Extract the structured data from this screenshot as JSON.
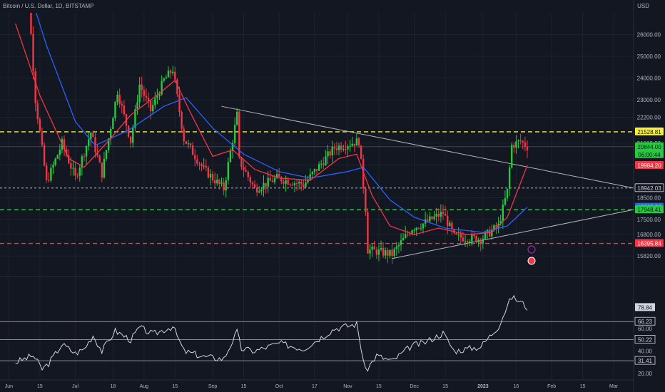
{
  "header": {
    "title": "Bitcoin / U.S. Dollar, 1D, BITSTAMP",
    "currency": "USD"
  },
  "colors": {
    "background": "#131722",
    "up": "#26c940",
    "down": "#f23645",
    "ma_fast": "#f23645",
    "ma_slow": "#2962ff",
    "rsi": "#d1d4dc",
    "trend": "#b2b5be",
    "resistance": "#f7f13b",
    "support_green": "#26c940",
    "support_red": "#f23645"
  },
  "chart_data": [
    {
      "type": "candlestick",
      "title": "Bitcoin / U.S. Dollar, 1D, BITSTAMP",
      "ylabel": "USD",
      "ylim": [
        15200,
        27000
      ],
      "y_ticks": [
        {
          "value": 15820,
          "label": "15820.00"
        },
        {
          "value": 16800,
          "label": "16800.00"
        },
        {
          "value": 17500,
          "label": "17500.00"
        },
        {
          "value": 18500,
          "label": "18500.00"
        },
        {
          "value": 20000,
          "label": "20000.00"
        },
        {
          "value": 21000,
          "label": "21000.00"
        },
        {
          "value": 22200,
          "label": "22200.00"
        },
        {
          "value": 23000,
          "label": "23000.00"
        },
        {
          "value": 24000,
          "label": "24000.00"
        },
        {
          "value": 25000,
          "label": "25000.00"
        },
        {
          "value": 26000,
          "label": "26000.00"
        }
      ],
      "x_ticks": [
        {
          "date": "2022-06-01",
          "label": "Jun"
        },
        {
          "date": "2022-06-15",
          "label": "15"
        },
        {
          "date": "2022-07-01",
          "label": "Jul"
        },
        {
          "date": "2022-07-18",
          "label": "18"
        },
        {
          "date": "2022-08-01",
          "label": "Aug"
        },
        {
          "date": "2022-08-15",
          "label": "15"
        },
        {
          "date": "2022-09-01",
          "label": "Sep"
        },
        {
          "date": "2022-09-15",
          "label": "15"
        },
        {
          "date": "2022-10-01",
          "label": "Oct"
        },
        {
          "date": "2022-10-17",
          "label": "17"
        },
        {
          "date": "2022-11-01",
          "label": "Nov"
        },
        {
          "date": "2022-11-15",
          "label": "15"
        },
        {
          "date": "2022-12-01",
          "label": "Dec"
        },
        {
          "date": "2022-12-15",
          "label": "15"
        },
        {
          "date": "2023-01-01",
          "label": "2023"
        },
        {
          "date": "2023-01-16",
          "label": "16"
        },
        {
          "date": "2023-02-01",
          "label": "Feb"
        },
        {
          "date": "2023-02-15",
          "label": "15"
        },
        {
          "date": "2023-03-01",
          "label": "Mar"
        }
      ],
      "price_tags": [
        {
          "value": 21528.81,
          "label": "21528.81",
          "bg": "#f7f13b",
          "fg": "#131722"
        },
        {
          "value": 20844.0,
          "label": "20844.00",
          "sub": "06:00:44",
          "bg": "#26c940",
          "fg": "#131722"
        },
        {
          "value": 19984.2,
          "label": "19984.20",
          "bg": "#f23645",
          "fg": "#ffffff"
        },
        {
          "value": 18942.03,
          "label": "18942.03",
          "bg": "#131722",
          "fg": "#d1d4dc",
          "border": "#d1d4dc"
        },
        {
          "value": 18063.36,
          "label": "18063.36",
          "bg": "#2962ff",
          "fg": "#ffffff"
        },
        {
          "value": 17948.41,
          "label": "17948.41",
          "bg": "#26c940",
          "fg": "#131722"
        },
        {
          "value": 16395.84,
          "label": "16395.84",
          "bg": "#f23645",
          "fg": "#ffffff"
        }
      ],
      "horizontal_levels": [
        {
          "value": 21528.81,
          "style": "dashed",
          "color": "#f7f13b"
        },
        {
          "value": 20844.0,
          "style": "solid-thin",
          "color": "#4a4e5a"
        },
        {
          "value": 18942.03,
          "style": "dashed-thin",
          "color": "#d1d4dc"
        },
        {
          "value": 17948.41,
          "style": "dashed",
          "color": "#26c940"
        },
        {
          "value": 16395.84,
          "style": "dashed",
          "color": "#f23645"
        }
      ],
      "trendlines": [
        {
          "from": {
            "date": "2022-09-05",
            "value": 22700
          },
          "to": {
            "date": "2023-03-10",
            "value": 18942
          }
        },
        {
          "from": {
            "date": "2022-11-21",
            "value": 15700
          },
          "to": {
            "date": "2023-03-10",
            "value": 17948
          }
        }
      ],
      "ohlc_anchors": [
        {
          "date": "2022-06-04",
          "value": 30000
        },
        {
          "date": "2022-06-10",
          "value": 27500
        },
        {
          "date": "2022-06-13",
          "value": 23000
        },
        {
          "date": "2022-06-18",
          "value": 19200
        },
        {
          "date": "2022-06-25",
          "value": 21000
        },
        {
          "date": "2022-07-01",
          "value": 19400
        },
        {
          "date": "2022-07-08",
          "value": 21500
        },
        {
          "date": "2022-07-13",
          "value": 19600
        },
        {
          "date": "2022-07-20",
          "value": 23400
        },
        {
          "date": "2022-07-26",
          "value": 21100
        },
        {
          "date": "2022-07-30",
          "value": 23700
        },
        {
          "date": "2022-08-04",
          "value": 22500
        },
        {
          "date": "2022-08-10",
          "value": 23900
        },
        {
          "date": "2022-08-14",
          "value": 24400
        },
        {
          "date": "2022-08-19",
          "value": 21200
        },
        {
          "date": "2022-08-28",
          "value": 19800
        },
        {
          "date": "2022-09-06",
          "value": 18900
        },
        {
          "date": "2022-09-12",
          "value": 22300
        },
        {
          "date": "2022-09-13",
          "value": 20200
        },
        {
          "date": "2022-09-20",
          "value": 18900
        },
        {
          "date": "2022-09-30",
          "value": 19400
        },
        {
          "date": "2022-10-12",
          "value": 19100
        },
        {
          "date": "2022-10-26",
          "value": 20800
        },
        {
          "date": "2022-11-06",
          "value": 21100
        },
        {
          "date": "2022-11-09",
          "value": 18000
        },
        {
          "date": "2022-11-10",
          "value": 16100
        },
        {
          "date": "2022-11-21",
          "value": 15900
        },
        {
          "date": "2022-11-30",
          "value": 17100
        },
        {
          "date": "2022-12-05",
          "value": 17300
        },
        {
          "date": "2022-12-14",
          "value": 17800
        },
        {
          "date": "2022-12-19",
          "value": 16700
        },
        {
          "date": "2022-12-31",
          "value": 16600
        },
        {
          "date": "2023-01-08",
          "value": 17200
        },
        {
          "date": "2023-01-12",
          "value": 18800
        },
        {
          "date": "2023-01-14",
          "value": 20900
        },
        {
          "date": "2023-01-18",
          "value": 21100
        },
        {
          "date": "2023-01-21",
          "value": 20844
        }
      ],
      "ma_fast": [
        {
          "date": "2022-06-04",
          "value": 26500
        },
        {
          "date": "2022-06-15",
          "value": 23200
        },
        {
          "date": "2022-06-28",
          "value": 20300
        },
        {
          "date": "2022-07-05",
          "value": 19900
        },
        {
          "date": "2022-07-15",
          "value": 21000
        },
        {
          "date": "2022-07-26",
          "value": 22300
        },
        {
          "date": "2022-08-08",
          "value": 23300
        },
        {
          "date": "2022-08-15",
          "value": 23900
        },
        {
          "date": "2022-08-22",
          "value": 22400
        },
        {
          "date": "2022-09-01",
          "value": 20400
        },
        {
          "date": "2022-09-10",
          "value": 20700
        },
        {
          "date": "2022-09-20",
          "value": 19800
        },
        {
          "date": "2022-10-01",
          "value": 19400
        },
        {
          "date": "2022-10-15",
          "value": 19300
        },
        {
          "date": "2022-10-28",
          "value": 20300
        },
        {
          "date": "2022-11-05",
          "value": 20500
        },
        {
          "date": "2022-11-12",
          "value": 18600
        },
        {
          "date": "2022-11-20",
          "value": 17200
        },
        {
          "date": "2022-12-01",
          "value": 16800
        },
        {
          "date": "2022-12-12",
          "value": 17100
        },
        {
          "date": "2022-12-25",
          "value": 16800
        },
        {
          "date": "2023-01-05",
          "value": 16900
        },
        {
          "date": "2023-01-12",
          "value": 17600
        },
        {
          "date": "2023-01-21",
          "value": 19984
        }
      ],
      "ma_slow": [
        {
          "date": "2022-06-04",
          "value": 30000
        },
        {
          "date": "2022-06-18",
          "value": 25500
        },
        {
          "date": "2022-07-01",
          "value": 22000
        },
        {
          "date": "2022-07-10",
          "value": 20900
        },
        {
          "date": "2022-07-25",
          "value": 21600
        },
        {
          "date": "2022-08-10",
          "value": 22700
        },
        {
          "date": "2022-08-20",
          "value": 23100
        },
        {
          "date": "2022-09-01",
          "value": 21700
        },
        {
          "date": "2022-09-15",
          "value": 20500
        },
        {
          "date": "2022-10-01",
          "value": 19700
        },
        {
          "date": "2022-10-15",
          "value": 19400
        },
        {
          "date": "2022-11-01",
          "value": 19700
        },
        {
          "date": "2022-11-08",
          "value": 19900
        },
        {
          "date": "2022-11-20",
          "value": 18400
        },
        {
          "date": "2022-12-01",
          "value": 17600
        },
        {
          "date": "2022-12-15",
          "value": 17100
        },
        {
          "date": "2023-01-01",
          "value": 16900
        },
        {
          "date": "2023-01-12",
          "value": 17200
        },
        {
          "date": "2023-01-21",
          "value": 18063
        }
      ]
    },
    {
      "type": "line",
      "title": "",
      "ylim": [
        15,
        100
      ],
      "y_ticks": [
        {
          "value": 20,
          "label": "20.00"
        },
        {
          "value": 40,
          "label": "40.00"
        },
        {
          "value": 60,
          "label": "60.00"
        }
      ],
      "levels": [
        {
          "value": 66.23,
          "label": "66.23"
        },
        {
          "value": 50.22,
          "label": "50.22"
        },
        {
          "value": 31.41,
          "label": "31.41"
        }
      ],
      "last_value": {
        "value": 78.84,
        "label": "78.84"
      },
      "series": [
        {
          "values": [
            {
              "date": "2022-06-04",
              "value": 30
            },
            {
              "date": "2022-06-12",
              "value": 36
            },
            {
              "date": "2022-06-16",
              "value": 24
            },
            {
              "date": "2022-06-19",
              "value": 29
            },
            {
              "date": "2022-06-25",
              "value": 46
            },
            {
              "date": "2022-07-01",
              "value": 38
            },
            {
              "date": "2022-07-05",
              "value": 42
            },
            {
              "date": "2022-07-09",
              "value": 54
            },
            {
              "date": "2022-07-13",
              "value": 40
            },
            {
              "date": "2022-07-19",
              "value": 58
            },
            {
              "date": "2022-07-26",
              "value": 50
            },
            {
              "date": "2022-07-30",
              "value": 61
            },
            {
              "date": "2022-08-05",
              "value": 55
            },
            {
              "date": "2022-08-14",
              "value": 62
            },
            {
              "date": "2022-08-19",
              "value": 40
            },
            {
              "date": "2022-08-28",
              "value": 35
            },
            {
              "date": "2022-09-06",
              "value": 33
            },
            {
              "date": "2022-09-12",
              "value": 57
            },
            {
              "date": "2022-09-14",
              "value": 42
            },
            {
              "date": "2022-09-20",
              "value": 40
            },
            {
              "date": "2022-10-01",
              "value": 47
            },
            {
              "date": "2022-10-12",
              "value": 42
            },
            {
              "date": "2022-10-26",
              "value": 60
            },
            {
              "date": "2022-11-05",
              "value": 64
            },
            {
              "date": "2022-11-09",
              "value": 22
            },
            {
              "date": "2022-11-14",
              "value": 36
            },
            {
              "date": "2022-11-21",
              "value": 31
            },
            {
              "date": "2022-11-30",
              "value": 45
            },
            {
              "date": "2022-12-05",
              "value": 47
            },
            {
              "date": "2022-12-14",
              "value": 56
            },
            {
              "date": "2022-12-19",
              "value": 40
            },
            {
              "date": "2022-12-31",
              "value": 44
            },
            {
              "date": "2023-01-08",
              "value": 62
            },
            {
              "date": "2023-01-12",
              "value": 80
            },
            {
              "date": "2023-01-14",
              "value": 88
            },
            {
              "date": "2023-01-18",
              "value": 84
            },
            {
              "date": "2023-01-21",
              "value": 78.84
            }
          ]
        }
      ]
    }
  ]
}
